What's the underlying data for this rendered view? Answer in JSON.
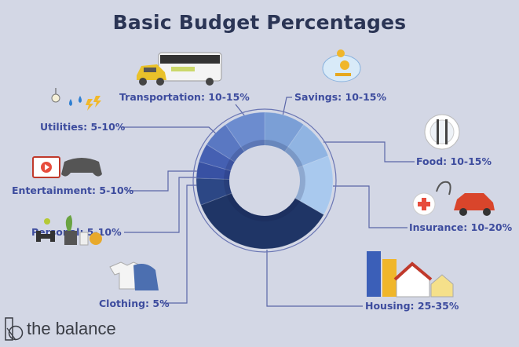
{
  "header": {
    "title": "Basic Budget Percentages"
  },
  "labels": {
    "transportation": "Transportation: 10-15%",
    "savings": "Savings: 10-15%",
    "utilities": "Utilities: 5-10%",
    "food": "Food: 10-15%",
    "entertainment": "Entertainment: 5-10%",
    "insurance": "Insurance: 10-20%",
    "personal": "Personal: 5-10%",
    "clothing": "Clothing: 5%",
    "housing": "Housing: 25-35%"
  },
  "logo": {
    "text": "the balance"
  },
  "chart_data": {
    "type": "pie",
    "variant": "donut",
    "title": "Basic Budget Percentages",
    "categories": [
      "Savings",
      "Food",
      "Insurance",
      "Housing",
      "Clothing",
      "Personal",
      "Entertainment",
      "Utilities",
      "Transportation"
    ],
    "ranges": [
      "10-15%",
      "10-15%",
      "10-20%",
      "25-35%",
      "5%",
      "5-10%",
      "5-10%",
      "5-10%",
      "10-15%"
    ],
    "values": [
      9.7,
      9.4,
      14.2,
      35.8,
      6.4,
      3.9,
      4.4,
      6.4,
      9.7
    ],
    "colors": [
      "#7b9fd6",
      "#90b4e2",
      "#a9c9ee",
      "#1f3566",
      "#2c4785",
      "#3851a3",
      "#4560b2",
      "#5a78c2",
      "#6c8ccf"
    ],
    "start": "12 o'clock, clockwise"
  }
}
